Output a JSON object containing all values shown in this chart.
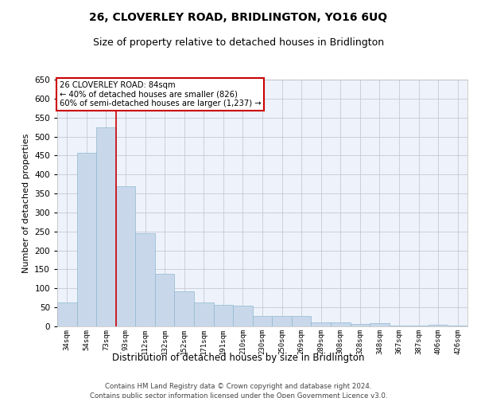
{
  "title": "26, CLOVERLEY ROAD, BRIDLINGTON, YO16 6UQ",
  "subtitle": "Size of property relative to detached houses in Bridlington",
  "xlabel": "Distribution of detached houses by size in Bridlington",
  "ylabel": "Number of detached properties",
  "footnote1": "Contains HM Land Registry data © Crown copyright and database right 2024.",
  "footnote2": "Contains public sector information licensed under the Open Government Licence v3.0.",
  "annotation_line1": "26 CLOVERLEY ROAD: 84sqm",
  "annotation_line2": "← 40% of detached houses are smaller (826)",
  "annotation_line3": "60% of semi-detached houses are larger (1,237) →",
  "categories": [
    "34sqm",
    "54sqm",
    "73sqm",
    "93sqm",
    "112sqm",
    "132sqm",
    "152sqm",
    "171sqm",
    "191sqm",
    "210sqm",
    "230sqm",
    "250sqm",
    "269sqm",
    "289sqm",
    "308sqm",
    "328sqm",
    "348sqm",
    "367sqm",
    "387sqm",
    "406sqm",
    "426sqm"
  ],
  "values": [
    62,
    458,
    524,
    368,
    246,
    139,
    92,
    62,
    56,
    54,
    27,
    27,
    27,
    11,
    11,
    6,
    8,
    3,
    3,
    5,
    3
  ],
  "bar_color": "#c8d8ea",
  "bar_edge_color": "#90b8d0",
  "red_line_index": 2,
  "ylim": [
    0,
    650
  ],
  "background_color": "#eef2fa",
  "grid_color": "#c5cad8",
  "title_fontsize": 10,
  "subtitle_fontsize": 9,
  "annotation_box_color": "#ffffff",
  "annotation_box_edge": "#cc0000",
  "red_line_color": "#cc0000",
  "footnote_fontsize": 6.5
}
